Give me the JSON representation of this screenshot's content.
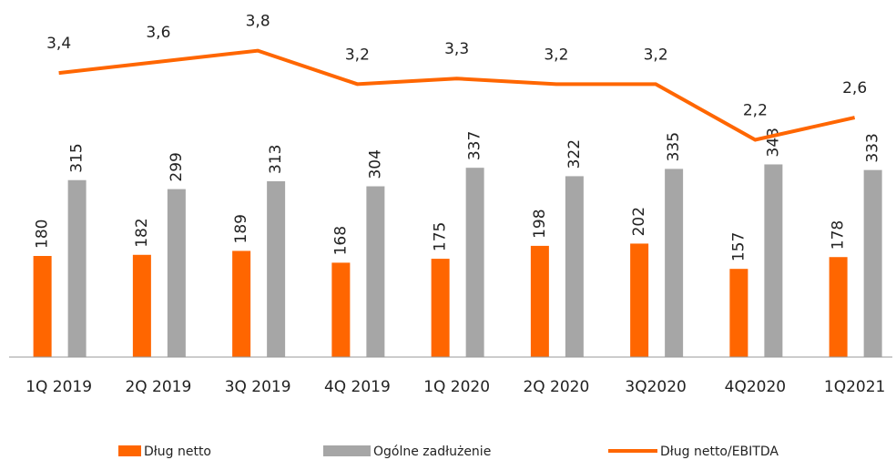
{
  "chart_data": {
    "type": "bar",
    "categories": [
      "1Q 2019",
      "2Q 2019",
      "3Q 2019",
      "4Q 2019",
      "1Q 2020",
      "2Q 2020",
      "3Q2020",
      "4Q2020",
      "1Q2021"
    ],
    "series": [
      {
        "name": "Dług netto",
        "color": "#ff6600",
        "values": [
          180,
          182,
          189,
          168,
          175,
          198,
          202,
          157,
          178
        ]
      },
      {
        "name": "Ogólne zadłużenie",
        "color": "#a6a6a6",
        "values": [
          315,
          299,
          313,
          304,
          337,
          322,
          335,
          343,
          333
        ]
      },
      {
        "name": "Dług netto/EBITDA",
        "type": "line",
        "axis": "y2",
        "color": "#ff6600",
        "values": [
          3.4,
          3.6,
          3.8,
          3.2,
          3.3,
          3.2,
          3.2,
          2.2,
          2.6
        ],
        "value_labels": [
          "3,4",
          "3,6",
          "3,8",
          "3,2",
          "3,3",
          "3,2",
          "3,2",
          "2,2",
          "2,6"
        ]
      }
    ],
    "ylim": [
      0,
      600
    ],
    "y2lim": [
      -1.7,
      4.35
    ],
    "legend": "bottom"
  }
}
